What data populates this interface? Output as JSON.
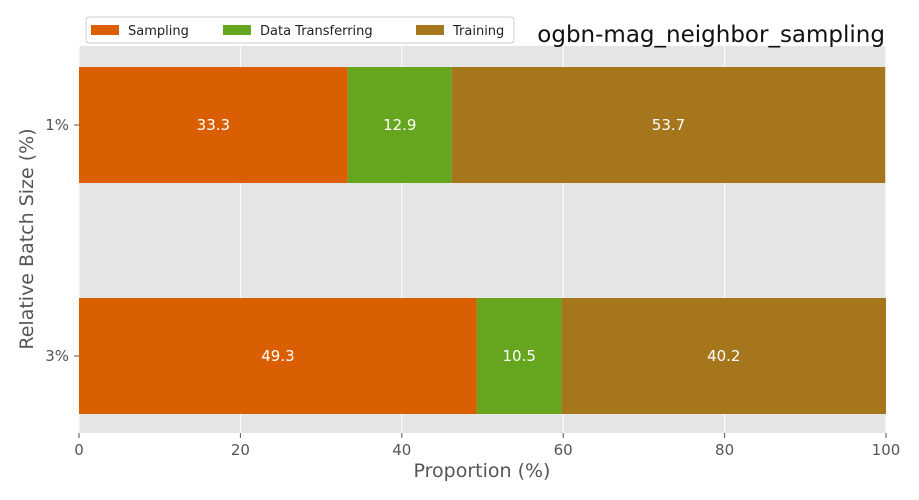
{
  "chart_data": {
    "type": "bar",
    "orientation": "horizontal",
    "stacked": true,
    "title": "ogbn-mag_neighbor_sampling",
    "xlabel": "Proportion (%)",
    "ylabel": "Relative Batch Size (%)",
    "xlim": [
      0,
      100
    ],
    "x_ticks": [
      "0",
      "20",
      "40",
      "60",
      "80",
      "100"
    ],
    "categories": [
      "1%",
      "3%"
    ],
    "series": [
      {
        "name": "Sampling",
        "color": "#d95f02",
        "values": [
          33.3,
          49.3
        ]
      },
      {
        "name": "Data Transferring",
        "color": "#66a61e",
        "values": [
          12.9,
          10.5
        ]
      },
      {
        "name": "Training",
        "color": "#a6761d",
        "values": [
          53.7,
          40.2
        ]
      }
    ],
    "data_labels": [
      [
        "33.3",
        "49.3"
      ],
      [
        "12.9",
        "10.5"
      ],
      [
        "53.7",
        "40.2"
      ]
    ],
    "grid": true,
    "plot_background": "#e5e5e5",
    "legend_position": "top-left"
  }
}
